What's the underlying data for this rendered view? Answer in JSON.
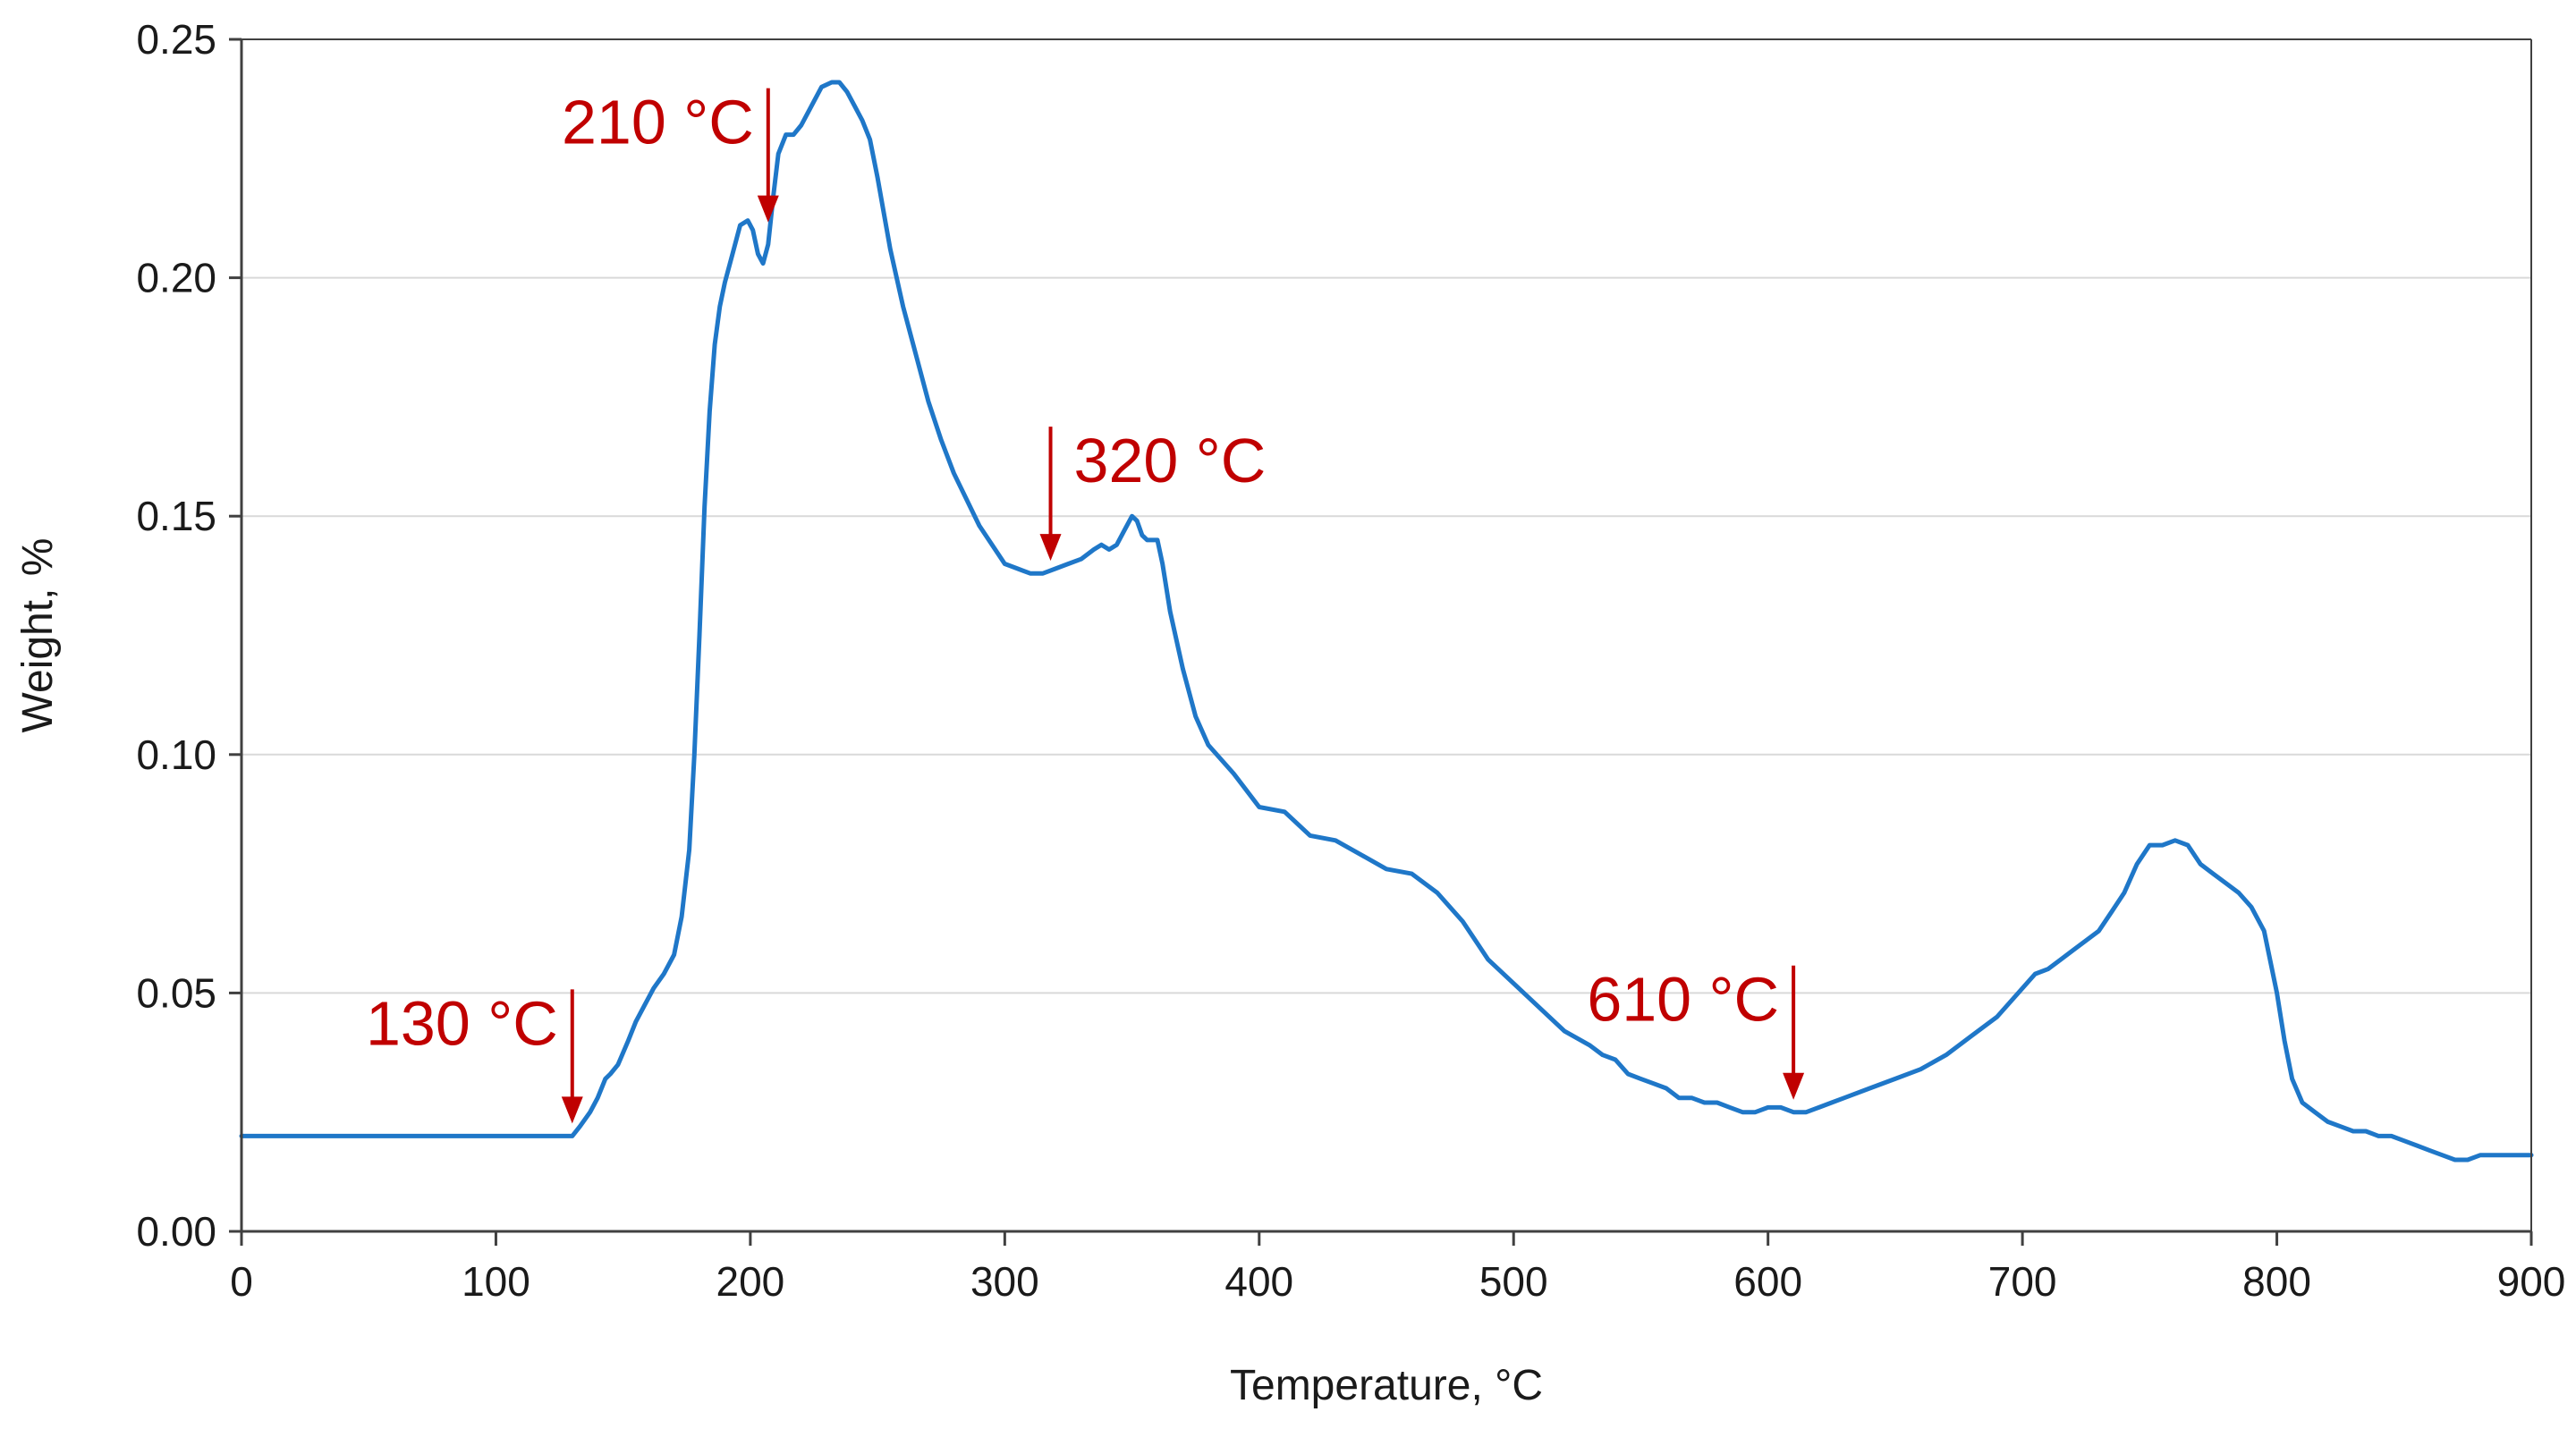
{
  "chart_data": {
    "type": "line",
    "title": "",
    "xlabel": "Temperature, °C",
    "ylabel": "Weight, %",
    "xlim": [
      0,
      900
    ],
    "ylim": [
      0,
      0.25
    ],
    "grid": true,
    "colors": {
      "line": "#1f77c8",
      "annotation": "#c00000",
      "grid": "#d9d9d9",
      "axis": "#404040"
    },
    "x_ticks": [
      0,
      100,
      200,
      300,
      400,
      500,
      600,
      700,
      800,
      900
    ],
    "x_tick_labels": [
      "0",
      "100",
      "200",
      "300",
      "400",
      "500",
      "600",
      "700",
      "800",
      "900"
    ],
    "y_ticks": [
      0,
      0.05,
      0.1,
      0.15,
      0.2,
      0.25
    ],
    "y_tick_labels": [
      "0.00",
      "0.05",
      "0.10",
      "0.15",
      "0.20",
      "0.25"
    ],
    "series": [
      {
        "name": "Weight",
        "x": [
          0,
          50,
          100,
          120,
          130,
          133,
          137,
          140,
          143,
          145,
          148,
          152,
          155,
          158,
          162,
          166,
          170,
          173,
          176,
          178,
          180,
          182,
          184,
          186,
          188,
          190,
          193,
          196,
          199,
          201,
          203,
          205,
          207,
          209,
          211,
          214,
          217,
          220,
          224,
          228,
          232,
          235,
          238,
          241,
          244,
          247,
          250,
          255,
          260,
          265,
          270,
          275,
          280,
          290,
          300,
          305,
          310,
          315,
          320,
          325,
          330,
          335,
          338,
          341,
          344,
          347,
          350,
          352,
          354,
          356,
          358,
          360,
          362,
          365,
          370,
          375,
          380,
          390,
          400,
          410,
          420,
          430,
          440,
          450,
          460,
          470,
          480,
          490,
          500,
          510,
          520,
          530,
          535,
          540,
          545,
          550,
          555,
          560,
          565,
          570,
          575,
          580,
          585,
          590,
          595,
          600,
          605,
          610,
          615,
          620,
          625,
          630,
          640,
          650,
          660,
          670,
          680,
          690,
          700,
          705,
          710,
          715,
          720,
          725,
          730,
          735,
          740,
          745,
          750,
          755,
          760,
          765,
          770,
          775,
          780,
          785,
          790,
          795,
          800,
          803,
          806,
          810,
          815,
          820,
          825,
          830,
          835,
          840,
          845,
          850,
          855,
          860,
          865,
          870,
          875,
          880,
          885,
          890,
          895,
          900
        ],
        "values": [
          0.02,
          0.02,
          0.02,
          0.02,
          0.02,
          0.022,
          0.025,
          0.028,
          0.032,
          0.033,
          0.035,
          0.04,
          0.044,
          0.047,
          0.051,
          0.054,
          0.058,
          0.066,
          0.08,
          0.1,
          0.125,
          0.152,
          0.172,
          0.186,
          0.194,
          0.199,
          0.205,
          0.211,
          0.212,
          0.21,
          0.205,
          0.203,
          0.207,
          0.217,
          0.226,
          0.23,
          0.23,
          0.232,
          0.236,
          0.24,
          0.241,
          0.241,
          0.239,
          0.236,
          0.233,
          0.229,
          0.221,
          0.206,
          0.194,
          0.184,
          0.174,
          0.166,
          0.159,
          0.148,
          0.14,
          0.139,
          0.138,
          0.138,
          0.139,
          0.14,
          0.141,
          0.143,
          0.144,
          0.143,
          0.144,
          0.147,
          0.15,
          0.149,
          0.146,
          0.145,
          0.145,
          0.145,
          0.14,
          0.13,
          0.118,
          0.108,
          0.102,
          0.096,
          0.089,
          0.088,
          0.083,
          0.082,
          0.079,
          0.076,
          0.075,
          0.071,
          0.065,
          0.057,
          0.052,
          0.047,
          0.042,
          0.039,
          0.037,
          0.036,
          0.033,
          0.032,
          0.031,
          0.03,
          0.028,
          0.028,
          0.027,
          0.027,
          0.026,
          0.025,
          0.025,
          0.026,
          0.026,
          0.025,
          0.025,
          0.026,
          0.027,
          0.028,
          0.03,
          0.032,
          0.034,
          0.037,
          0.041,
          0.045,
          0.051,
          0.054,
          0.055,
          0.057,
          0.059,
          0.061,
          0.063,
          0.067,
          0.071,
          0.077,
          0.081,
          0.081,
          0.082,
          0.081,
          0.077,
          0.075,
          0.073,
          0.071,
          0.068,
          0.063,
          0.05,
          0.04,
          0.032,
          0.027,
          0.025,
          0.023,
          0.022,
          0.021,
          0.021,
          0.02,
          0.02,
          0.019,
          0.018,
          0.017,
          0.016,
          0.015,
          0.015,
          0.016,
          0.016,
          0.016,
          0.016,
          0.016
        ]
      }
    ],
    "annotations": [
      {
        "label": "130 °C",
        "x": 130,
        "y": 0.02,
        "label_side": "left"
      },
      {
        "label": "210 °C",
        "x": 207,
        "y": 0.209,
        "label_side": "left"
      },
      {
        "label": "320 °C",
        "x": 318,
        "y": 0.138,
        "label_side": "right"
      },
      {
        "label": "610 °C",
        "x": 610,
        "y": 0.025,
        "label_side": "left"
      }
    ]
  }
}
